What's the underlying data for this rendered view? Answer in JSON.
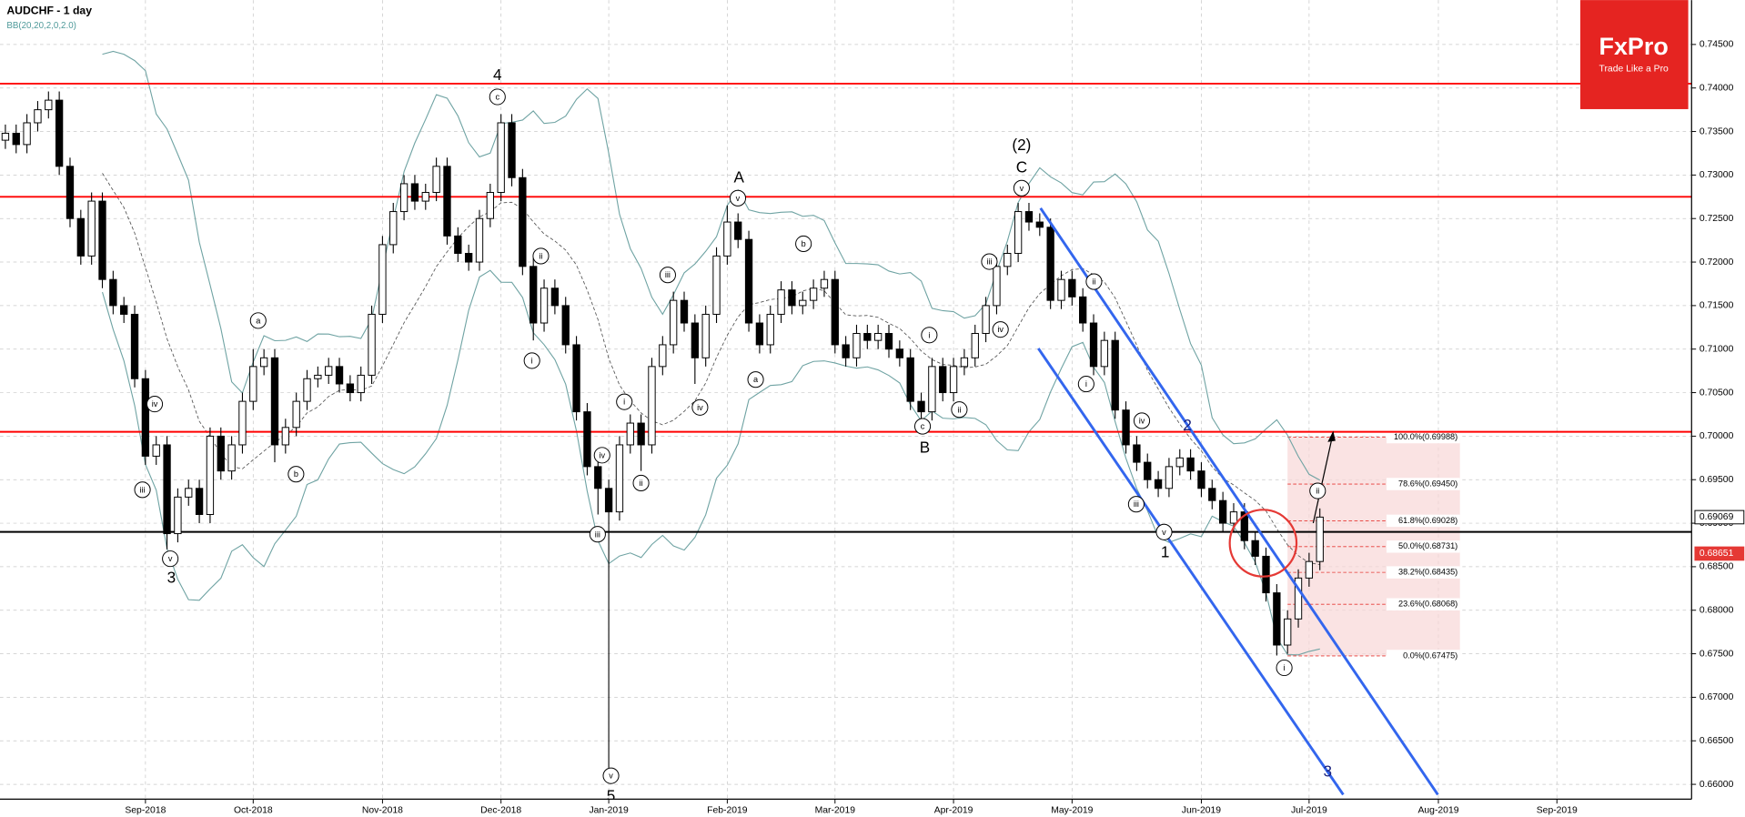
{
  "logo": {
    "name": "FxPro",
    "tagline": "Trade Like a Pro"
  },
  "chart_data": {
    "type": "candlestick",
    "title": "AUDCHF  - 1 day",
    "subtitle": "BB(20,20,2,0,2.0)",
    "categories": [
      null,
      null,
      null,
      null,
      null,
      null,
      null,
      null,
      null,
      null,
      null,
      null,
      null,
      "Sep-2018",
      null,
      null,
      null,
      null,
      null,
      null,
      null,
      null,
      null,
      "Oct-2018",
      null,
      null,
      null,
      null,
      null,
      null,
      null,
      null,
      null,
      null,
      null,
      "Nov-2018",
      null,
      null,
      null,
      null,
      null,
      null,
      null,
      null,
      null,
      null,
      "Dec-2018",
      null,
      null,
      null,
      null,
      null,
      null,
      null,
      null,
      null,
      "Jan-2019",
      null,
      null,
      null,
      null,
      null,
      null,
      null,
      null,
      null,
      null,
      "Feb-2019",
      null,
      null,
      null,
      null,
      null,
      null,
      null,
      null,
      null,
      "Mar-2019",
      null,
      null,
      null,
      null,
      null,
      null,
      null,
      null,
      null,
      null,
      "Apr-2019",
      null,
      null,
      null,
      null,
      null,
      null,
      null,
      null,
      null,
      null,
      "May-2019",
      null,
      null,
      null,
      null,
      null,
      null,
      null,
      null,
      null,
      null,
      null,
      "Jun-2019",
      null,
      null,
      null,
      null,
      null,
      null,
      null,
      null,
      null,
      "Jul-2019",
      null,
      null,
      null,
      null,
      null,
      null,
      null,
      null,
      null,
      null,
      null,
      "Aug-2019",
      null,
      null,
      null,
      null,
      null,
      null,
      null,
      null,
      null,
      null,
      "Sep-2019",
      null,
      null,
      null,
      null,
      null,
      null,
      null,
      null,
      null,
      null,
      null,
      null
    ],
    "open": [
      0.734,
      0.7348,
      0.7335,
      0.736,
      0.7375,
      0.7386,
      0.731,
      0.725,
      0.7207,
      0.727,
      0.718,
      0.715,
      0.714,
      0.7066,
      0.6977,
      0.699,
      0.6888,
      0.693,
      0.694,
      0.691,
      0.7,
      0.696,
      0.699,
      0.704,
      0.708,
      0.709,
      0.699,
      0.701,
      0.704,
      0.7066,
      0.707,
      0.708,
      0.706,
      0.705,
      0.707,
      0.714,
      0.722,
      0.7258,
      0.729,
      0.727,
      0.728,
      0.731,
      0.723,
      0.721,
      0.72,
      0.725,
      0.728,
      0.736,
      0.7297,
      0.7195,
      0.713,
      0.717,
      0.715,
      0.7105,
      0.7028,
      0.6965,
      0.694,
      0.6913,
      0.699,
      0.7015,
      0.699,
      0.708,
      0.7105,
      0.7156,
      0.713,
      0.709,
      0.714,
      0.7207,
      0.7246,
      0.7226,
      0.713,
      0.7105,
      0.714,
      0.7168,
      0.715,
      0.7156,
      0.717,
      0.718,
      0.7105,
      0.709,
      0.7118,
      0.711,
      0.7118,
      0.71,
      0.709,
      0.704,
      0.7028,
      0.708,
      0.705,
      0.708,
      0.709,
      0.7118,
      0.715,
      0.7195,
      0.721,
      0.7258,
      0.7246,
      0.724,
      0.7156,
      0.718,
      0.716,
      0.713,
      0.708,
      0.711,
      0.703,
      0.699,
      0.697,
      0.695,
      0.694,
      0.6965,
      0.6975,
      0.696,
      0.694,
      0.6926,
      0.69,
      0.6913,
      0.688,
      0.6862,
      0.682,
      0.676,
      0.679,
      0.6837,
      0.6856,
      null,
      null,
      null,
      null,
      null,
      null,
      null,
      null,
      null,
      null,
      null,
      null,
      null,
      null,
      null,
      null,
      null,
      null,
      null,
      null,
      null,
      null,
      null,
      null,
      null,
      null,
      null,
      null,
      null,
      null,
      null,
      null,
      null,
      null
    ],
    "high": [
      0.7358,
      0.7358,
      0.737,
      0.7385,
      0.7396,
      0.7396,
      0.732,
      0.726,
      0.728,
      0.728,
      0.719,
      0.716,
      0.715,
      0.7076,
      0.7,
      0.7,
      0.694,
      0.695,
      0.695,
      0.701,
      0.701,
      0.7,
      0.705,
      0.71,
      0.71,
      0.71,
      0.702,
      0.705,
      0.7076,
      0.708,
      0.709,
      0.709,
      0.707,
      0.708,
      0.715,
      0.723,
      0.7268,
      0.73,
      0.73,
      0.729,
      0.732,
      0.732,
      0.724,
      0.722,
      0.726,
      0.729,
      0.737,
      0.737,
      0.7307,
      0.7205,
      0.718,
      0.718,
      0.716,
      0.7115,
      0.7038,
      0.6975,
      0.695,
      0.7,
      0.7025,
      0.7025,
      0.709,
      0.7115,
      0.7166,
      0.7166,
      0.714,
      0.715,
      0.7217,
      0.7265,
      0.7256,
      0.7236,
      0.714,
      0.715,
      0.7178,
      0.7178,
      0.7166,
      0.718,
      0.719,
      0.719,
      0.7115,
      0.7128,
      0.7128,
      0.7128,
      0.7128,
      0.711,
      0.71,
      0.705,
      0.709,
      0.709,
      0.709,
      0.71,
      0.7128,
      0.716,
      0.7205,
      0.722,
      0.7268,
      0.7268,
      0.7256,
      0.725,
      0.719,
      0.719,
      0.717,
      0.714,
      0.712,
      0.712,
      0.704,
      0.7,
      0.698,
      0.696,
      0.6975,
      0.6985,
      0.6985,
      0.697,
      0.695,
      0.6936,
      0.6923,
      0.6923,
      0.689,
      0.6872,
      0.683,
      0.68,
      0.6847,
      0.6866,
      0.6917,
      null,
      null,
      null,
      null,
      null,
      null,
      null,
      null,
      null,
      null,
      null,
      null,
      null,
      null,
      null,
      null,
      null,
      null,
      null,
      null,
      null,
      null,
      null,
      null,
      null,
      null,
      null,
      null,
      null,
      null,
      null,
      null,
      null,
      null
    ],
    "low": [
      0.733,
      0.7325,
      0.7325,
      0.735,
      0.7365,
      0.73,
      0.724,
      0.7197,
      0.7197,
      0.717,
      0.714,
      0.713,
      0.7056,
      0.6967,
      0.6967,
      0.687,
      0.6878,
      0.692,
      0.69,
      0.69,
      0.695,
      0.695,
      0.698,
      0.703,
      0.707,
      0.697,
      0.698,
      0.7,
      0.703,
      0.7056,
      0.706,
      0.705,
      0.704,
      0.704,
      0.706,
      0.713,
      0.721,
      0.7248,
      0.726,
      0.726,
      0.727,
      0.722,
      0.72,
      0.719,
      0.719,
      0.724,
      0.727,
      0.7287,
      0.7185,
      0.711,
      0.712,
      0.714,
      0.7095,
      0.7018,
      0.6955,
      0.691,
      0.6619,
      0.6903,
      0.698,
      0.696,
      0.698,
      0.707,
      0.7095,
      0.712,
      0.706,
      0.708,
      0.713,
      0.7197,
      0.7216,
      0.712,
      0.7095,
      0.7095,
      0.713,
      0.714,
      0.714,
      0.7146,
      0.716,
      0.7095,
      0.708,
      0.708,
      0.71,
      0.71,
      0.709,
      0.708,
      0.703,
      0.7018,
      0.7018,
      0.704,
      0.704,
      0.707,
      0.708,
      0.7108,
      0.714,
      0.7185,
      0.72,
      0.7236,
      0.723,
      0.7146,
      0.7146,
      0.715,
      0.712,
      0.707,
      0.707,
      0.702,
      0.698,
      0.696,
      0.694,
      0.693,
      0.693,
      0.6955,
      0.695,
      0.693,
      0.6916,
      0.689,
      0.689,
      0.687,
      0.6852,
      0.681,
      0.6748,
      0.675,
      0.678,
      0.6827,
      0.6846,
      null,
      null,
      null,
      null,
      null,
      null,
      null,
      null,
      null,
      null,
      null,
      null,
      null,
      null,
      null,
      null,
      null,
      null,
      null,
      null,
      null,
      null,
      null,
      null,
      null,
      null,
      null,
      null,
      null,
      null,
      null,
      null,
      null,
      null
    ],
    "close": [
      0.7348,
      0.7335,
      0.736,
      0.7375,
      0.7386,
      0.731,
      0.725,
      0.7207,
      0.727,
      0.718,
      0.715,
      0.714,
      0.7066,
      0.6977,
      0.699,
      0.6888,
      0.693,
      0.694,
      0.691,
      0.7,
      0.696,
      0.699,
      0.704,
      0.708,
      0.709,
      0.699,
      0.701,
      0.704,
      0.7066,
      0.707,
      0.708,
      0.706,
      0.705,
      0.707,
      0.714,
      0.722,
      0.7258,
      0.729,
      0.727,
      0.728,
      0.731,
      0.723,
      0.721,
      0.72,
      0.725,
      0.728,
      0.736,
      0.7297,
      0.7195,
      0.713,
      0.717,
      0.715,
      0.7105,
      0.7028,
      0.6965,
      0.694,
      0.6913,
      0.699,
      0.7015,
      0.699,
      0.708,
      0.7105,
      0.7156,
      0.713,
      0.709,
      0.714,
      0.7207,
      0.7246,
      0.7226,
      0.713,
      0.7105,
      0.714,
      0.7168,
      0.715,
      0.7156,
      0.717,
      0.718,
      0.7105,
      0.709,
      0.7118,
      0.711,
      0.7118,
      0.71,
      0.709,
      0.704,
      0.7028,
      0.708,
      0.705,
      0.708,
      0.709,
      0.7118,
      0.715,
      0.7195,
      0.721,
      0.7258,
      0.7246,
      0.724,
      0.7156,
      0.718,
      0.716,
      0.713,
      0.708,
      0.711,
      0.703,
      0.699,
      0.697,
      0.695,
      0.694,
      0.6965,
      0.6975,
      0.696,
      0.694,
      0.6926,
      0.69,
      0.6913,
      0.688,
      0.6862,
      0.682,
      0.676,
      0.679,
      0.6837,
      0.6856,
      0.6907,
      null,
      null,
      null,
      null,
      null,
      null,
      null,
      null,
      null,
      null,
      null,
      null,
      null,
      null,
      null,
      null,
      null,
      null,
      null,
      null,
      null,
      null,
      null,
      null,
      null,
      null,
      null,
      null,
      null,
      null,
      null,
      null,
      null,
      null
    ],
    "ylim": [
      0.6583,
      0.7501
    ],
    "yticks": [
      {
        "value": 0.745,
        "label": "0.74500"
      },
      {
        "value": 0.74,
        "label": "0.74000"
      },
      {
        "value": 0.735,
        "label": "0.73500"
      },
      {
        "value": 0.73,
        "label": "0.73000"
      },
      {
        "value": 0.725,
        "label": "0.72500"
      },
      {
        "value": 0.72,
        "label": "0.72000"
      },
      {
        "value": 0.715,
        "label": "0.71500"
      },
      {
        "value": 0.71,
        "label": "0.71000"
      },
      {
        "value": 0.705,
        "label": "0.70500"
      },
      {
        "value": 0.7,
        "label": "0.70000"
      },
      {
        "value": 0.695,
        "label": "0.69500"
      },
      {
        "value": 0.69,
        "label": "0.69000"
      },
      {
        "value": 0.685,
        "label": "0.68500"
      },
      {
        "value": 0.68,
        "label": "0.68000"
      },
      {
        "value": 0.675,
        "label": "0.67500"
      },
      {
        "value": 0.67,
        "label": "0.67000"
      },
      {
        "value": 0.665,
        "label": "0.66500"
      },
      {
        "value": 0.66,
        "label": "0.66000"
      }
    ],
    "grid": true,
    "up_color": "#ffffff",
    "down_color": "#000000",
    "band_color": "#6fa3a3",
    "hlines": [
      {
        "value": 0.7405,
        "color": "#ff0000"
      },
      {
        "value": 0.7275,
        "color": "#ff0000"
      },
      {
        "value": 0.7005,
        "color": "#ff0000"
      },
      {
        "value": 0.689,
        "color": "#000000"
      }
    ],
    "price_labels": [
      {
        "value": 0.69069,
        "color": "#000000"
      },
      {
        "value": 0.68651,
        "color": "#e53935"
      }
    ],
    "fib_levels": [
      {
        "value": 0.69988,
        "label": "100.0%(0.69988)"
      },
      {
        "value": 0.6945,
        "label": "78.6%(0.69450)"
      },
      {
        "value": 0.69028,
        "label": "61.8%(0.69028)"
      },
      {
        "value": 0.68731,
        "label": "50.0%(0.68731)"
      },
      {
        "value": 0.68435,
        "label": "38.2%(0.68435)"
      },
      {
        "value": 0.68068,
        "label": "23.6%(0.68068)"
      },
      {
        "value": 0.67475,
        "label": "0.0%(0.67475)"
      }
    ],
    "annotations": [
      "iv",
      "iii",
      "v",
      "3",
      "a",
      "b",
      "4",
      "c",
      "ii",
      "i",
      "iv",
      "iii",
      "v",
      "5",
      "i",
      "ii",
      "iii",
      "iv",
      "A",
      "v",
      "b",
      "a",
      "i",
      "ii",
      "c",
      "B",
      "iii",
      "iv",
      "(2)",
      "C",
      "v",
      "ii",
      "i",
      "iv",
      "iii",
      "v",
      "1",
      "2",
      "i",
      "ii",
      "3"
    ]
  }
}
